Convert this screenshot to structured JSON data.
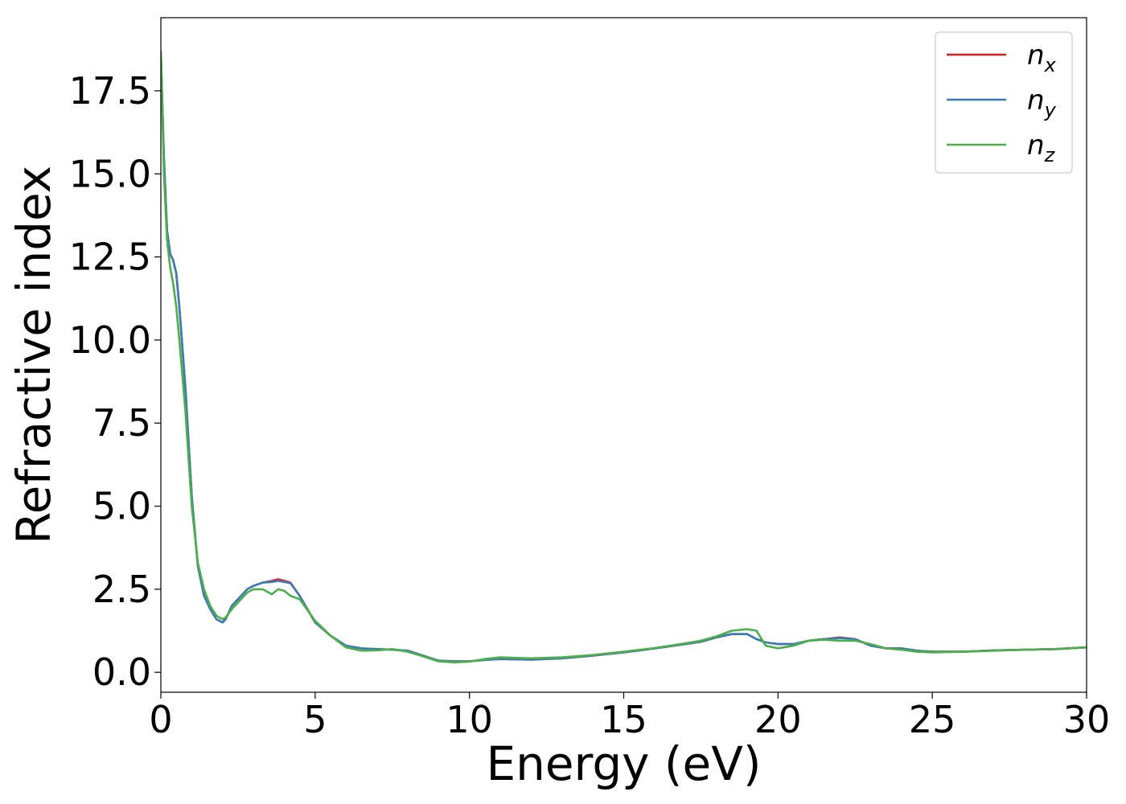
{
  "chart_data": {
    "type": "line",
    "title": "",
    "xlabel": "Energy (eV)",
    "ylabel": "Refractive index",
    "xlim": [
      0,
      30
    ],
    "ylim": [
      -0.6,
      19.7
    ],
    "xticks": [
      0,
      5,
      10,
      15,
      20,
      25,
      30
    ],
    "xtick_labels": [
      "0",
      "5",
      "10",
      "15",
      "20",
      "25",
      "30"
    ],
    "yticks": [
      0.0,
      2.5,
      5.0,
      7.5,
      10.0,
      12.5,
      15.0,
      17.5
    ],
    "ytick_labels": [
      "0.0",
      "2.5",
      "5.0",
      "7.5",
      "10.0",
      "12.5",
      "15.0",
      "17.5"
    ],
    "grid": false,
    "legend_position": "top-right",
    "series": [
      {
        "name": "n_x",
        "label_main": "n",
        "label_sub": "x",
        "color": "#e41a1c",
        "x": [
          0,
          0.1,
          0.2,
          0.3,
          0.4,
          0.5,
          0.6,
          0.8,
          1.0,
          1.2,
          1.4,
          1.6,
          1.8,
          2.0,
          2.1,
          2.3,
          2.5,
          2.8,
          3.0,
          3.3,
          3.6,
          3.8,
          4.0,
          4.2,
          4.5,
          5.0,
          5.5,
          6.0,
          6.5,
          7.0,
          7.5,
          8.0,
          8.5,
          9.0,
          9.5,
          10.0,
          10.5,
          11.0,
          12.0,
          13.0,
          14.0,
          15.0,
          16.0,
          17.0,
          17.5,
          18.0,
          18.5,
          19.0,
          19.3,
          19.6,
          20.0,
          20.5,
          21.0,
          21.5,
          22.0,
          22.5,
          23.0,
          23.5,
          24.0,
          24.5,
          25.0,
          26.0,
          27.0,
          28.0,
          29.0,
          30.0
        ],
        "values": [
          18.6,
          15.5,
          13.3,
          12.6,
          12.4,
          12.0,
          11.0,
          8.5,
          5.3,
          3.2,
          2.3,
          1.9,
          1.6,
          1.5,
          1.6,
          2.0,
          2.2,
          2.5,
          2.6,
          2.7,
          2.75,
          2.8,
          2.75,
          2.7,
          2.3,
          1.5,
          1.1,
          0.8,
          0.72,
          0.7,
          0.68,
          0.65,
          0.5,
          0.35,
          0.33,
          0.33,
          0.38,
          0.4,
          0.38,
          0.42,
          0.5,
          0.6,
          0.72,
          0.85,
          0.92,
          1.05,
          1.15,
          1.15,
          1.0,
          0.9,
          0.85,
          0.85,
          0.95,
          1.0,
          1.05,
          1.0,
          0.8,
          0.72,
          0.72,
          0.65,
          0.62,
          0.62,
          0.66,
          0.68,
          0.7,
          0.75
        ]
      },
      {
        "name": "n_y",
        "label_main": "n",
        "label_sub": "y",
        "color": "#377eb8",
        "x": [
          0,
          0.1,
          0.2,
          0.3,
          0.4,
          0.5,
          0.6,
          0.8,
          1.0,
          1.2,
          1.4,
          1.6,
          1.8,
          2.0,
          2.1,
          2.3,
          2.5,
          2.8,
          3.0,
          3.3,
          3.6,
          3.8,
          4.0,
          4.2,
          4.5,
          5.0,
          5.5,
          6.0,
          6.5,
          7.0,
          7.5,
          8.0,
          8.5,
          9.0,
          9.5,
          10.0,
          10.5,
          11.0,
          12.0,
          13.0,
          14.0,
          15.0,
          16.0,
          17.0,
          17.5,
          18.0,
          18.5,
          19.0,
          19.3,
          19.6,
          20.0,
          20.5,
          21.0,
          21.5,
          22.0,
          22.5,
          23.0,
          23.5,
          24.0,
          24.5,
          25.0,
          26.0,
          27.0,
          28.0,
          29.0,
          30.0
        ],
        "values": [
          18.6,
          15.5,
          13.3,
          12.6,
          12.4,
          12.0,
          11.0,
          8.5,
          5.3,
          3.2,
          2.3,
          1.9,
          1.6,
          1.5,
          1.6,
          2.0,
          2.2,
          2.5,
          2.6,
          2.7,
          2.72,
          2.75,
          2.72,
          2.68,
          2.3,
          1.5,
          1.1,
          0.8,
          0.72,
          0.7,
          0.68,
          0.65,
          0.5,
          0.35,
          0.33,
          0.33,
          0.37,
          0.4,
          0.38,
          0.42,
          0.5,
          0.6,
          0.72,
          0.85,
          0.92,
          1.05,
          1.15,
          1.15,
          1.0,
          0.9,
          0.85,
          0.85,
          0.95,
          1.0,
          1.03,
          1.0,
          0.8,
          0.72,
          0.72,
          0.65,
          0.62,
          0.62,
          0.66,
          0.68,
          0.7,
          0.75
        ]
      },
      {
        "name": "n_z",
        "label_main": "n",
        "label_sub": "z",
        "color": "#4daf4a",
        "x": [
          0,
          0.1,
          0.2,
          0.3,
          0.4,
          0.5,
          0.6,
          0.8,
          1.0,
          1.2,
          1.4,
          1.6,
          1.8,
          2.0,
          2.1,
          2.3,
          2.5,
          2.8,
          3.0,
          3.3,
          3.6,
          3.8,
          4.0,
          4.2,
          4.5,
          5.0,
          5.5,
          6.0,
          6.5,
          7.0,
          7.5,
          8.0,
          8.5,
          9.0,
          9.5,
          10.0,
          10.5,
          11.0,
          12.0,
          13.0,
          14.0,
          15.0,
          16.0,
          17.0,
          17.5,
          18.0,
          18.5,
          19.0,
          19.3,
          19.6,
          20.0,
          20.5,
          21.0,
          21.5,
          22.0,
          22.5,
          23.0,
          23.5,
          24.0,
          24.5,
          25.0,
          26.0,
          27.0,
          28.0,
          29.0,
          30.0
        ],
        "values": [
          18.7,
          15.0,
          13.0,
          12.2,
          11.7,
          11.0,
          10.0,
          7.8,
          5.0,
          3.3,
          2.5,
          2.0,
          1.7,
          1.6,
          1.65,
          1.9,
          2.1,
          2.4,
          2.5,
          2.5,
          2.35,
          2.5,
          2.45,
          2.3,
          2.2,
          1.55,
          1.1,
          0.75,
          0.65,
          0.66,
          0.7,
          0.62,
          0.48,
          0.33,
          0.3,
          0.32,
          0.4,
          0.45,
          0.42,
          0.45,
          0.52,
          0.62,
          0.73,
          0.87,
          0.95,
          1.08,
          1.25,
          1.3,
          1.25,
          0.8,
          0.72,
          0.8,
          0.95,
          0.98,
          0.95,
          0.95,
          0.85,
          0.72,
          0.68,
          0.62,
          0.6,
          0.62,
          0.65,
          0.68,
          0.7,
          0.75
        ]
      }
    ]
  }
}
